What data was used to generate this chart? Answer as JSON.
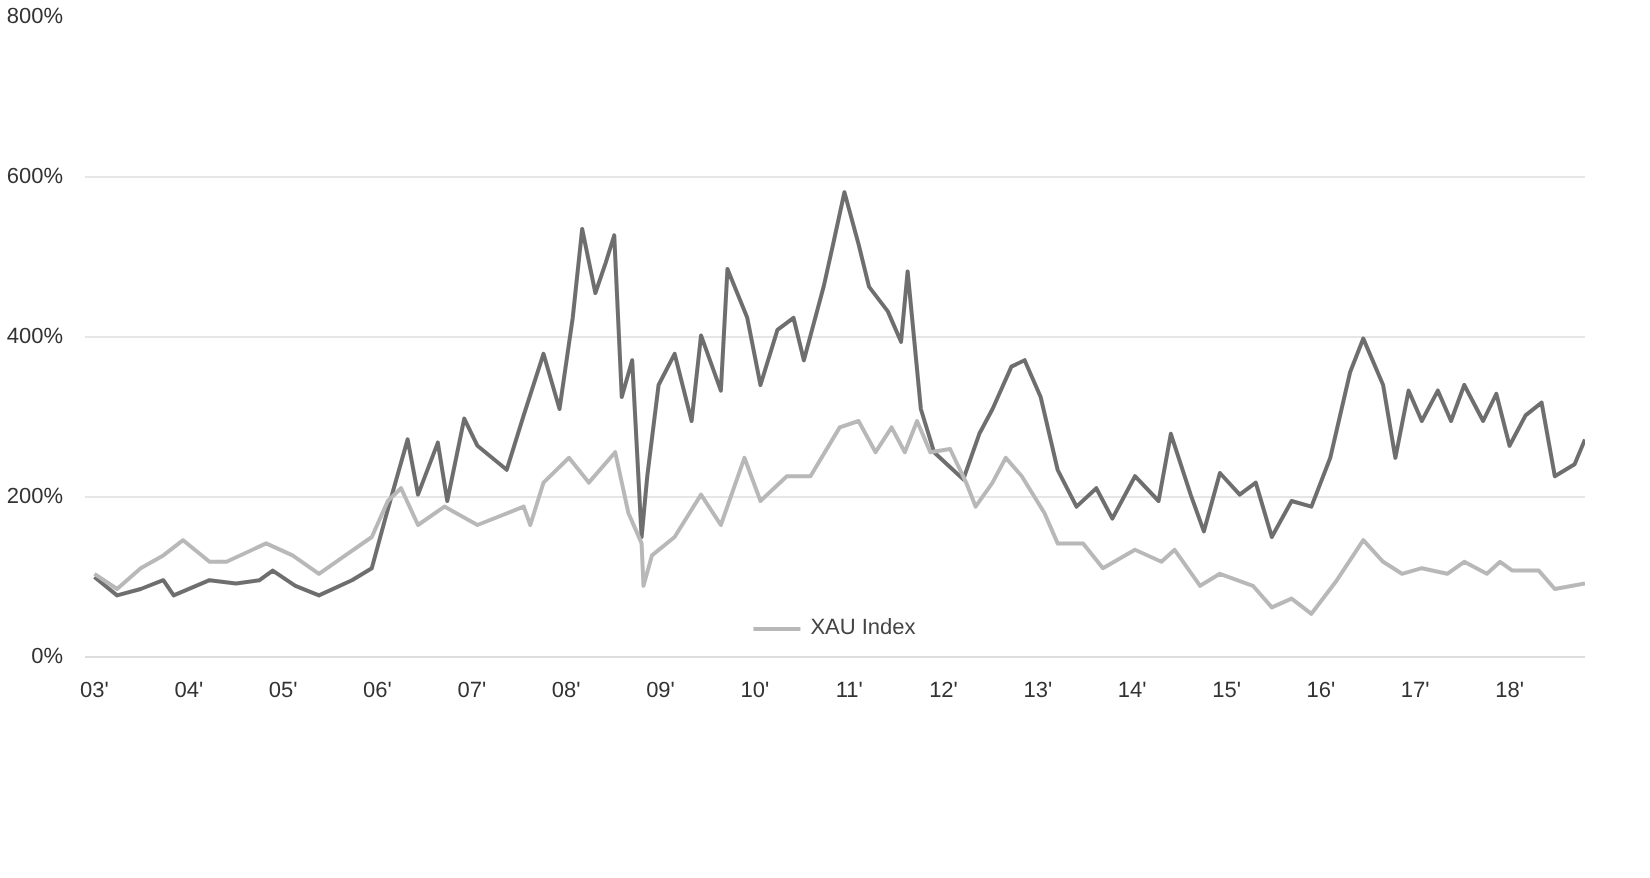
{
  "chart_data": {
    "type": "line",
    "xlim": [
      2.9,
      18.8
    ],
    "ylim": [
      0,
      800
    ],
    "xticks": [
      {
        "value": 3,
        "label": "03'"
      },
      {
        "value": 4,
        "label": "04'"
      },
      {
        "value": 5,
        "label": "05'"
      },
      {
        "value": 6,
        "label": "06'"
      },
      {
        "value": 7,
        "label": "07'"
      },
      {
        "value": 8,
        "label": "08'"
      },
      {
        "value": 9,
        "label": "09'"
      },
      {
        "value": 10,
        "label": "10'"
      },
      {
        "value": 11,
        "label": "11'"
      },
      {
        "value": 12,
        "label": "12'"
      },
      {
        "value": 13,
        "label": "13'"
      },
      {
        "value": 14,
        "label": "14'"
      },
      {
        "value": 15,
        "label": "15'"
      },
      {
        "value": 16,
        "label": "16'"
      },
      {
        "value": 17,
        "label": "17'"
      },
      {
        "value": 18,
        "label": "18'"
      }
    ],
    "yticks": [
      {
        "value": 0,
        "label": "0%"
      },
      {
        "value": 200,
        "label": "200%"
      },
      {
        "value": 400,
        "label": "400%"
      },
      {
        "value": 600,
        "label": "600%"
      },
      {
        "value": 800,
        "label": "800%"
      }
    ],
    "grid": "y",
    "legend": "bottom",
    "series": [
      {
        "color": "#6e6e6e",
        "x": [
          3.0,
          3.24,
          3.49,
          3.73,
          3.84,
          4.22,
          4.5,
          4.75,
          4.89,
          5.13,
          5.38,
          5.73,
          5.94,
          6.08,
          6.32,
          6.43,
          6.64,
          6.74,
          6.92,
          7.06,
          7.37,
          7.55,
          7.76,
          7.93,
          8.07,
          8.17,
          8.31,
          8.42,
          8.51,
          8.59,
          8.7,
          8.8,
          8.86,
          8.98,
          9.15,
          9.33,
          9.43,
          9.64,
          9.71,
          9.92,
          10.06,
          10.24,
          10.41,
          10.52,
          10.73,
          10.83,
          10.95,
          11.1,
          11.21,
          11.41,
          11.55,
          11.62,
          11.76,
          11.9,
          12.1,
          12.21,
          12.38,
          12.52,
          12.72,
          12.86,
          13.03,
          13.21,
          13.41,
          13.62,
          13.79,
          14.03,
          14.28,
          14.41,
          14.62,
          14.76,
          14.93,
          15.14,
          15.31,
          15.48,
          15.69,
          15.9,
          16.1,
          16.31,
          16.45,
          16.66,
          16.79,
          16.93,
          17.07,
          17.24,
          17.38,
          17.52,
          17.72,
          17.86,
          18.0,
          18.17,
          18.34,
          18.48,
          18.69,
          18.8
        ],
        "values": [
          100,
          77,
          85,
          96,
          77,
          96,
          92,
          96,
          108,
          89,
          77,
          96,
          111,
          172,
          272,
          203,
          268,
          195,
          298,
          264,
          234,
          302,
          379,
          310,
          424,
          535,
          455,
          493,
          527,
          325,
          371,
          150,
          226,
          340,
          379,
          295,
          402,
          333,
          485,
          424,
          340,
          409,
          424,
          371,
          463,
          516,
          581,
          516,
          463,
          432,
          394,
          482,
          310,
          256,
          234,
          222,
          279,
          310,
          363,
          371,
          325,
          234,
          188,
          211,
          173,
          226,
          195,
          279,
          203,
          157,
          230,
          203,
          218,
          150,
          195,
          188,
          249,
          356,
          398,
          340,
          249,
          333,
          295,
          333,
          295,
          340,
          295,
          329,
          264,
          302,
          318,
          226,
          241,
          272
        ]
      },
      {
        "name": "XAU Index",
        "color": "#b8b8b8",
        "x": [
          3.0,
          3.24,
          3.49,
          3.73,
          3.94,
          4.22,
          4.4,
          4.82,
          5.1,
          5.38,
          5.66,
          5.94,
          6.11,
          6.25,
          6.43,
          6.71,
          7.06,
          7.55,
          7.62,
          7.76,
          8.03,
          8.24,
          8.52,
          8.66,
          8.8,
          8.82,
          8.91,
          9.15,
          9.43,
          9.64,
          9.89,
          10.06,
          10.34,
          10.59,
          10.9,
          11.1,
          11.28,
          11.45,
          11.59,
          11.72,
          11.86,
          12.07,
          12.24,
          12.34,
          12.52,
          12.66,
          12.83,
          13.07,
          13.21,
          13.48,
          13.69,
          14.03,
          14.31,
          14.45,
          14.72,
          14.93,
          15.28,
          15.48,
          15.69,
          15.9,
          16.17,
          16.45,
          16.66,
          16.86,
          17.07,
          17.34,
          17.52,
          17.76,
          17.9,
          18.03,
          18.31,
          18.48,
          18.8
        ],
        "values": [
          104,
          85,
          111,
          127,
          146,
          119,
          119,
          142,
          127,
          104,
          127,
          150,
          195,
          211,
          165,
          188,
          165,
          188,
          165,
          218,
          249,
          218,
          256,
          180,
          142,
          89,
          127,
          150,
          203,
          165,
          249,
          195,
          226,
          226,
          287,
          295,
          256,
          287,
          256,
          295,
          256,
          260,
          218,
          188,
          218,
          249,
          226,
          180,
          142,
          142,
          111,
          134,
          119,
          134,
          89,
          104,
          89,
          62,
          73,
          54,
          96,
          146,
          119,
          104,
          111,
          104,
          119,
          104,
          119,
          108,
          108,
          85,
          92
        ]
      }
    ]
  }
}
